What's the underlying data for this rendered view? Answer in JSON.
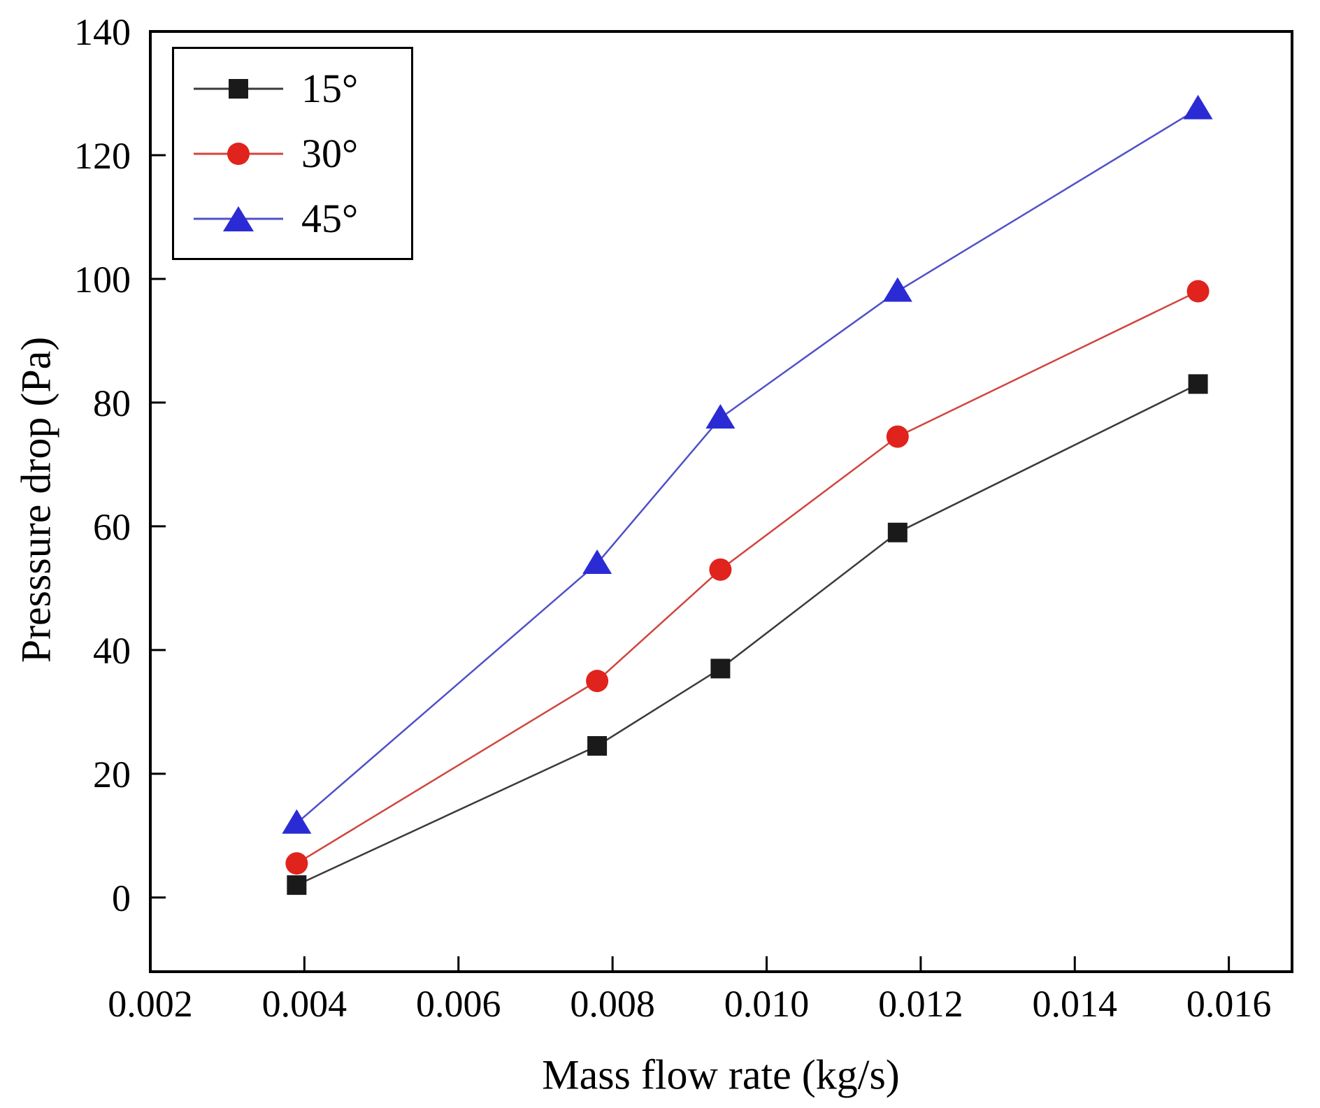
{
  "chart_data": {
    "type": "line",
    "title": "",
    "xlabel": "Mass flow rate (kg/s)",
    "ylabel": "Presssure drop (Pa)",
    "xlim": [
      0.002,
      0.01682
    ],
    "ylim": [
      -12,
      140
    ],
    "xticks": [
      0.002,
      0.004,
      0.006,
      0.008,
      0.01,
      0.012,
      0.014,
      0.016
    ],
    "xtick_labels": [
      "0.002",
      "0.004",
      "0.006",
      "0.008",
      "0.010",
      "0.012",
      "0.014",
      "0.016"
    ],
    "yticks": [
      0,
      20,
      40,
      60,
      80,
      100,
      120,
      140
    ],
    "ytick_labels": [
      "0",
      "20",
      "40",
      "60",
      "80",
      "100",
      "120",
      "140"
    ],
    "x": [
      0.0039,
      0.0078,
      0.0094,
      0.0117,
      0.0156
    ],
    "series": [
      {
        "name": "15°",
        "marker": "square",
        "color": "#1a1a1a",
        "line_color": "#3a3a3a",
        "values": [
          2,
          24.5,
          37,
          59,
          83
        ]
      },
      {
        "name": "30°",
        "marker": "circle",
        "color": "#e0231c",
        "line_color": "#d0453e",
        "values": [
          5.5,
          35,
          53,
          74.5,
          98
        ]
      },
      {
        "name": "45°",
        "marker": "triangle",
        "color": "#2b2bd5",
        "line_color": "#5050c8",
        "values": [
          12,
          54,
          77.5,
          98,
          127.5
        ]
      }
    ],
    "legend_position": "upper-left",
    "grid": false,
    "frame_color": "#000000"
  }
}
